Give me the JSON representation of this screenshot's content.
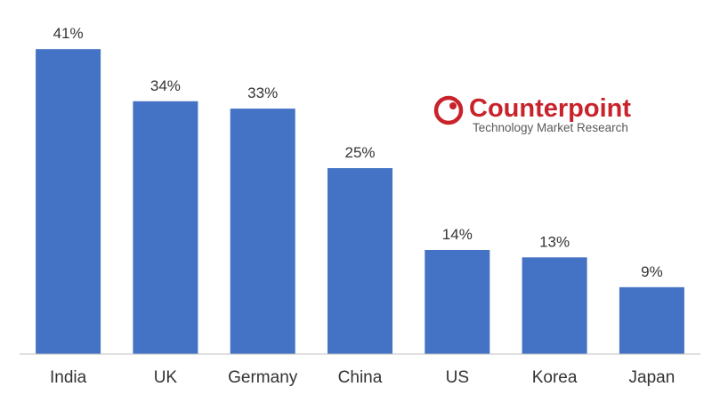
{
  "chart_data": {
    "type": "bar",
    "categories": [
      "India",
      "UK",
      "Germany",
      "China",
      "US",
      "Korea",
      "Japan"
    ],
    "values": [
      41,
      34,
      33,
      25,
      14,
      13,
      9
    ],
    "value_labels": [
      "41%",
      "34%",
      "33%",
      "25%",
      "14%",
      "13%",
      "9%"
    ],
    "ylim": [
      0,
      45
    ],
    "grid": false,
    "legend": "none",
    "bar_color": "#4472C4"
  },
  "logo": {
    "name": "Counterpoint",
    "tagline": "Technology Market Research",
    "brand_color": "#C8232B"
  }
}
